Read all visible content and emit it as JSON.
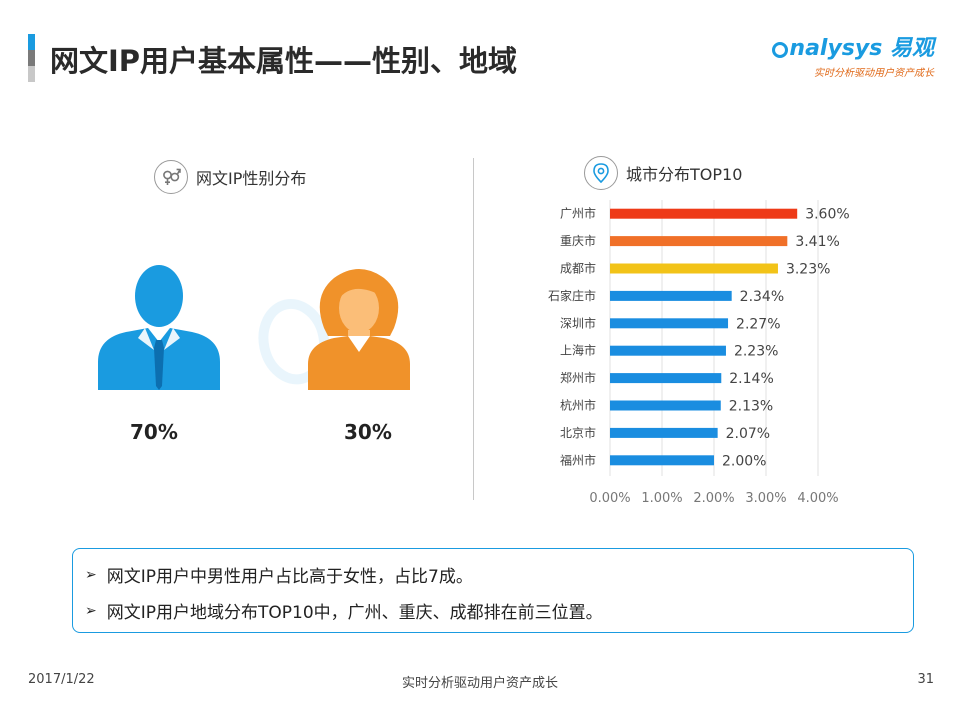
{
  "header": {
    "title": "网文IP用户基本属性——性别、地域",
    "logo_text": "nalysys 易观",
    "logo_tagline": "实时分析驱动用户资产成长"
  },
  "gender": {
    "heading": "网文IP性别分布",
    "icon": "gender-icon",
    "male_pct": "70%",
    "female_pct": "30%",
    "male_value": 70,
    "female_value": 30,
    "colors": {
      "male": "#1a9be0",
      "female": "#f0922a"
    }
  },
  "city": {
    "heading": "城市分布TOP10",
    "icon": "location-pin-icon"
  },
  "chart_data": {
    "type": "bar",
    "orientation": "horizontal",
    "title": "城市分布TOP10",
    "categories": [
      "广州市",
      "重庆市",
      "成都市",
      "石家庄市",
      "深圳市",
      "上海市",
      "郑州市",
      "杭州市",
      "北京市",
      "福州市"
    ],
    "values": [
      3.6,
      3.41,
      3.23,
      2.34,
      2.27,
      2.23,
      2.14,
      2.13,
      2.07,
      2.0
    ],
    "data_labels": [
      "3.60%",
      "3.41%",
      "3.23%",
      "2.34%",
      "2.27%",
      "2.23%",
      "2.14%",
      "2.13%",
      "2.07%",
      "2.00%"
    ],
    "bar_colors": [
      "#ee3a18",
      "#f07028",
      "#f2c318",
      "#1a8de0",
      "#1a8de0",
      "#1a8de0",
      "#1a8de0",
      "#1a8de0",
      "#1a8de0",
      "#1a8de0"
    ],
    "xlim": [
      0,
      4
    ],
    "x_ticks": [
      0,
      1,
      2,
      3,
      4
    ],
    "x_tick_labels": [
      "0.00%",
      "1.00%",
      "2.00%",
      "3.00%",
      "4.00%"
    ],
    "grid": true,
    "legend": "none"
  },
  "summary": {
    "items": [
      "网文IP用户中男性用户占比高于女性，占比7成。",
      "网文IP用户地域分布TOP10中，广州、重庆、成都排在前三位置。"
    ]
  },
  "footer": {
    "date": "2017/1/22",
    "center": "实时分析驱动用户资产成长",
    "page": "31"
  }
}
